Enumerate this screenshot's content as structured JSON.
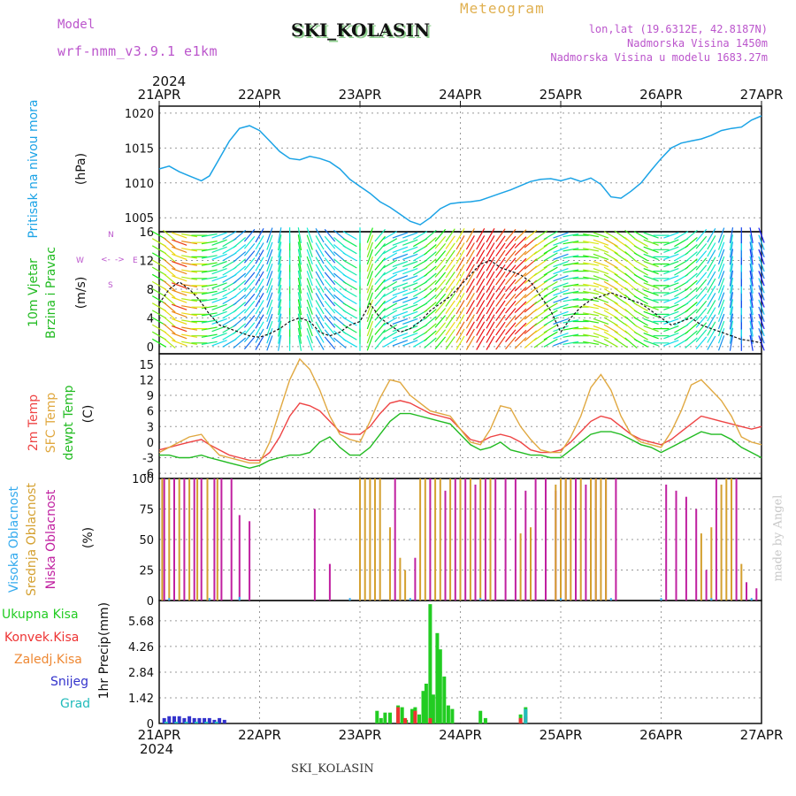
{
  "header": {
    "model_label": "Model",
    "model_name": "wrf-nmm_v3.9.1  e1km",
    "product": "Meteogram",
    "station": "SKI_KOLASIN",
    "location": "lon,lat (19.6312E, 42.8187N)",
    "elevation": "Nadmorska Visina 1450m",
    "model_elevation": "Nadmorska Visina u modelu 1683.27m",
    "year": "2024",
    "watermark": "made by Angel",
    "footer_station": "SKI_KOLASIN"
  },
  "colors": {
    "pressure": "#1ba3e6",
    "t2m": "#ee4444",
    "sfc": "#e0a840",
    "dewpt": "#22bb22",
    "high_cloud": "#33aaee",
    "mid_cloud": "#d4a030",
    "low_cloud": "#c020a0",
    "total_precip": "#22cc22",
    "conv_precip": "#ee3333",
    "frz_precip": "#ee8833",
    "snow": "#3333cc",
    "hail": "#22bbbb",
    "wind_speed": "#111111",
    "gust": "#ee3333"
  },
  "chart_data": [
    {
      "id": "pressure",
      "type": "line",
      "ylabel": [
        "Pritisak na nivou mora",
        "(hPa)"
      ],
      "ylim": [
        1003,
        1021
      ],
      "yticks": [
        1005,
        1010,
        1015,
        1020
      ],
      "x_days": [
        0,
        0.1,
        0.2,
        0.3,
        0.42,
        0.5,
        0.6,
        0.7,
        0.8,
        0.9,
        1.0,
        1.1,
        1.2,
        1.3,
        1.4,
        1.5,
        1.6,
        1.7,
        1.8,
        1.9,
        2.0,
        2.1,
        2.2,
        2.3,
        2.4,
        2.5,
        2.6,
        2.7,
        2.8,
        2.9,
        3.0,
        3.1,
        3.2,
        3.3,
        3.4,
        3.5,
        3.6,
        3.7,
        3.8,
        3.9,
        4.0,
        4.1,
        4.2,
        4.3,
        4.4,
        4.5,
        4.6,
        4.7,
        4.8,
        4.9,
        5.0,
        5.1,
        5.2,
        5.3,
        5.4,
        5.5,
        5.6,
        5.7,
        5.8,
        5.9,
        6.0
      ],
      "values": [
        1012.0,
        1012.4,
        1011.6,
        1011.0,
        1010.3,
        1011.0,
        1013.5,
        1016.0,
        1017.8,
        1018.2,
        1017.5,
        1016.0,
        1014.5,
        1013.5,
        1013.3,
        1013.8,
        1013.5,
        1013.0,
        1012.0,
        1010.5,
        1009.5,
        1008.5,
        1007.3,
        1006.5,
        1005.5,
        1004.5,
        1004.0,
        1005.0,
        1006.3,
        1007.0,
        1007.2,
        1007.3,
        1007.5,
        1008.0,
        1008.5,
        1009.0,
        1009.6,
        1010.2,
        1010.5,
        1010.6,
        1010.3,
        1010.7,
        1010.2,
        1010.7,
        1009.8,
        1008.0,
        1007.8,
        1008.8,
        1010.0,
        1011.8,
        1013.5,
        1015.0,
        1015.7,
        1016.0,
        1016.3,
        1016.8,
        1017.5,
        1017.8,
        1018.0,
        1019.0,
        1019.6
      ]
    },
    {
      "id": "wind",
      "type": "line",
      "ylabel": [
        "10m Vjetar",
        "Brzina i Pravac",
        "(m/s)"
      ],
      "direction_legend": [
        "N",
        "E",
        "S",
        "W",
        "<-",
        "->"
      ],
      "ylim": [
        -1,
        16
      ],
      "yticks": [
        0,
        4,
        8,
        12,
        16
      ],
      "x_days": [
        0,
        0.1,
        0.2,
        0.3,
        0.4,
        0.5,
        0.6,
        0.7,
        0.8,
        0.9,
        1.0,
        1.1,
        1.2,
        1.3,
        1.4,
        1.5,
        1.6,
        1.7,
        1.8,
        1.9,
        2.0,
        2.1,
        2.2,
        2.3,
        2.4,
        2.5,
        2.6,
        2.7,
        2.8,
        2.9,
        3.0,
        3.1,
        3.2,
        3.3,
        3.4,
        3.5,
        3.6,
        3.7,
        3.8,
        3.9,
        4.0,
        4.1,
        4.2,
        4.3,
        4.4,
        4.5,
        4.6,
        4.7,
        4.8,
        4.9,
        5.0,
        5.1,
        5.2,
        5.3,
        5.4,
        5.5,
        5.6,
        5.7,
        5.8,
        5.9,
        6.0
      ],
      "values": [
        6.0,
        8.0,
        9.0,
        8.0,
        6.5,
        4.5,
        3.0,
        2.5,
        2.0,
        1.5,
        1.3,
        1.8,
        2.5,
        3.5,
        4.0,
        3.5,
        2.0,
        1.5,
        2.0,
        3.0,
        3.5,
        6.0,
        4.0,
        3.0,
        2.0,
        2.5,
        3.5,
        5.0,
        6.0,
        7.0,
        8.5,
        10.0,
        11.5,
        12.0,
        11.0,
        10.5,
        10.0,
        9.0,
        7.0,
        5.0,
        2.0,
        4.0,
        5.5,
        6.5,
        7.0,
        7.5,
        7.0,
        6.5,
        6.0,
        5.0,
        4.0,
        3.0,
        3.5,
        4.0,
        3.0,
        2.5,
        2.0,
        1.5,
        1.0,
        0.8,
        0.5
      ],
      "wind_dir_deg": [
        300,
        310,
        290,
        280,
        270,
        260,
        250,
        240,
        230,
        220,
        210,
        200,
        190,
        180,
        170,
        160,
        150,
        140,
        130,
        120,
        180,
        200,
        220,
        240,
        250,
        250,
        240,
        230,
        220,
        215,
        210,
        210,
        210,
        210,
        215,
        220,
        225,
        230,
        235,
        240,
        250,
        260,
        270,
        280,
        290,
        300,
        305,
        310,
        300,
        290,
        270,
        250,
        240,
        230,
        220,
        210,
        200,
        190,
        180,
        170,
        160
      ]
    },
    {
      "id": "temperature",
      "type": "line",
      "ylabel": [
        "2m Temp",
        "SFC Temp",
        "dewpt Temp",
        "(C)"
      ],
      "ylim": [
        -7,
        17
      ],
      "yticks": [
        -6,
        -3,
        0,
        3,
        6,
        9,
        12,
        15
      ],
      "x_days": [
        0,
        0.1,
        0.2,
        0.3,
        0.42,
        0.5,
        0.6,
        0.7,
        0.8,
        0.9,
        1.0,
        1.1,
        1.2,
        1.3,
        1.4,
        1.5,
        1.6,
        1.7,
        1.8,
        1.9,
        2.0,
        2.1,
        2.2,
        2.3,
        2.4,
        2.5,
        2.6,
        2.7,
        2.8,
        2.9,
        3.0,
        3.1,
        3.2,
        3.3,
        3.4,
        3.5,
        3.6,
        3.7,
        3.8,
        3.9,
        4.0,
        4.1,
        4.2,
        4.3,
        4.4,
        4.5,
        4.6,
        4.7,
        4.8,
        4.9,
        5.0,
        5.1,
        5.2,
        5.3,
        5.4,
        5.5,
        5.6,
        5.7,
        5.8,
        5.9,
        6.0
      ],
      "series": [
        {
          "name": "2m Temp",
          "values": [
            -1.5,
            -1.0,
            -0.5,
            0.0,
            0.5,
            -0.5,
            -1.5,
            -2.5,
            -3.0,
            -3.5,
            -3.5,
            -2.0,
            1.0,
            5.0,
            7.5,
            7.0,
            6.0,
            4.0,
            2.0,
            1.5,
            1.5,
            3.0,
            5.5,
            7.5,
            8.0,
            7.5,
            6.5,
            5.5,
            5.0,
            4.5,
            2.5,
            0.5,
            0.0,
            1.0,
            1.5,
            1.0,
            0.0,
            -1.5,
            -2.0,
            -2.0,
            -1.5,
            0.0,
            2.0,
            4.0,
            5.0,
            4.5,
            3.0,
            1.5,
            0.5,
            0.0,
            -0.5,
            0.5,
            2.0,
            3.5,
            5.0,
            4.5,
            4.0,
            3.5,
            3.0,
            2.5,
            3.0
          ]
        },
        {
          "name": "SFC Temp",
          "values": [
            -2.0,
            -1.0,
            0.0,
            1.0,
            1.5,
            -0.5,
            -2.5,
            -3.0,
            -3.5,
            -4.0,
            -4.0,
            0.0,
            6.0,
            12.0,
            16.0,
            14.0,
            10.0,
            5.0,
            1.5,
            0.5,
            0.0,
            4.0,
            8.5,
            12.0,
            11.5,
            9.0,
            7.5,
            6.0,
            5.5,
            5.0,
            2.5,
            0.0,
            -0.5,
            2.5,
            7.0,
            6.5,
            3.0,
            0.5,
            -1.5,
            -2.0,
            -2.0,
            1.0,
            5.0,
            10.5,
            13.0,
            10.0,
            5.0,
            1.5,
            0.0,
            -0.5,
            -1.0,
            2.0,
            6.0,
            11.0,
            12.0,
            10.0,
            8.0,
            5.0,
            1.0,
            0.0,
            -0.5
          ]
        },
        {
          "name": "dewpt Temp",
          "values": [
            -2.5,
            -2.5,
            -3.0,
            -3.0,
            -2.5,
            -3.0,
            -3.5,
            -4.0,
            -4.5,
            -5.0,
            -4.5,
            -3.5,
            -3.0,
            -2.5,
            -2.5,
            -2.0,
            0.0,
            1.0,
            -1.0,
            -2.5,
            -2.5,
            -1.0,
            1.5,
            4.0,
            5.5,
            5.5,
            5.0,
            4.5,
            4.0,
            3.5,
            1.5,
            -0.5,
            -1.5,
            -1.0,
            0.0,
            -1.5,
            -2.0,
            -2.5,
            -2.5,
            -3.0,
            -3.0,
            -1.5,
            0.0,
            1.5,
            2.0,
            2.0,
            1.5,
            0.5,
            -0.5,
            -1.0,
            -2.0,
            -1.0,
            0.0,
            1.0,
            2.0,
            1.5,
            1.5,
            0.5,
            -1.0,
            -2.0,
            -3.0
          ]
        }
      ]
    },
    {
      "id": "cloud",
      "type": "bar",
      "ylabel": [
        "Visoka Oblacnost",
        "Srednja Oblacnost",
        "Niska Oblacnost",
        "(%)"
      ],
      "ylim": [
        0,
        100
      ],
      "yticks": [
        0,
        25,
        50,
        75,
        100
      ],
      "series": [
        {
          "name": "Niska Oblacnost",
          "x_days": [
            0.05,
            0.15,
            0.25,
            0.35,
            0.42,
            0.55,
            0.62,
            0.72,
            0.8,
            0.9,
            1.55,
            1.7,
            2.35,
            2.55,
            2.7,
            2.85,
            2.95,
            3.05,
            3.15,
            3.25,
            3.35,
            3.45,
            3.55,
            3.65,
            3.75,
            3.85,
            3.95,
            4.05,
            4.15,
            4.25,
            4.35,
            4.45,
            4.55,
            5.05,
            5.15,
            5.25,
            5.35,
            5.45,
            5.55,
            5.75,
            5.85,
            5.95
          ],
          "values": [
            100,
            100,
            100,
            100,
            100,
            100,
            100,
            100,
            70,
            65,
            75,
            30,
            100,
            35,
            100,
            90,
            100,
            100,
            95,
            100,
            100,
            100,
            100,
            90,
            100,
            100,
            90,
            100,
            100,
            95,
            100,
            100,
            100,
            95,
            90,
            85,
            75,
            25,
            100,
            100,
            15,
            10
          ]
        },
        {
          "name": "Srednja Oblacnost",
          "x_days": [
            0.03,
            0.1,
            0.2,
            0.3,
            0.38,
            0.48,
            0.58,
            2.0,
            2.05,
            2.1,
            2.15,
            2.2,
            2.3,
            2.4,
            2.45,
            2.6,
            2.65,
            2.75,
            2.8,
            2.9,
            3.0,
            3.1,
            3.2,
            3.3,
            3.6,
            3.7,
            3.95,
            4.0,
            4.05,
            4.1,
            4.2,
            4.3,
            4.35,
            4.4,
            4.45,
            5.4,
            5.5,
            5.6,
            5.65,
            5.7,
            5.8
          ],
          "values": [
            100,
            100,
            100,
            100,
            100,
            100,
            100,
            100,
            100,
            100,
            100,
            100,
            60,
            35,
            25,
            100,
            100,
            100,
            100,
            100,
            100,
            100,
            100,
            100,
            55,
            60,
            95,
            100,
            100,
            100,
            100,
            100,
            100,
            100,
            100,
            55,
            60,
            95,
            100,
            100,
            30
          ]
        },
        {
          "name": "Visoka Oblacnost",
          "x_days": [
            0.1,
            0.5,
            0.8,
            1.9,
            2.5,
            3.2,
            4.0,
            4.5,
            5.0,
            5.5,
            5.9
          ],
          "values": [
            2,
            2,
            3,
            2,
            2,
            2,
            2,
            2,
            2,
            2,
            2
          ]
        }
      ]
    },
    {
      "id": "precip",
      "type": "bar",
      "ylabel": [
        "1hr Precip",
        "(mm)"
      ],
      "ylim": [
        0,
        6.8
      ],
      "yticks": [
        0,
        1.42,
        2.84,
        4.26,
        5.68
      ],
      "legend": [
        "Ukupna Kisa",
        "Konvek.Kisa",
        "Zaledj.Kisa",
        "Snijeg",
        "Grad"
      ],
      "series": [
        {
          "name": "Ukupna Kisa",
          "x_days": [
            2.17,
            2.21,
            2.25,
            2.3,
            2.38,
            2.42,
            2.46,
            2.52,
            2.55,
            2.59,
            2.63,
            2.66,
            2.7,
            2.73,
            2.77,
            2.8,
            2.84,
            2.88,
            2.92,
            3.2,
            3.25,
            3.6,
            3.65
          ],
          "values": [
            0.7,
            0.3,
            0.6,
            0.6,
            1.0,
            0.9,
            0.2,
            0.8,
            0.9,
            0.5,
            1.8,
            2.2,
            6.6,
            1.6,
            5.0,
            4.1,
            2.6,
            1.0,
            0.8,
            0.7,
            0.3,
            0.5,
            0.9
          ]
        },
        {
          "name": "Konvek.Kisa",
          "x_days": [
            2.38,
            2.45,
            2.55,
            2.7,
            3.6,
            3.65
          ],
          "values": [
            0.9,
            0.3,
            0.7,
            0.3,
            0.3,
            0.4
          ]
        },
        {
          "name": "Snijeg",
          "x_days": [
            0.05,
            0.1,
            0.15,
            0.2,
            0.25,
            0.3,
            0.35,
            0.4,
            0.45,
            0.5,
            0.55,
            0.6,
            0.65
          ],
          "values": [
            0.3,
            0.4,
            0.4,
            0.4,
            0.3,
            0.4,
            0.3,
            0.3,
            0.3,
            0.3,
            0.2,
            0.3,
            0.2
          ]
        },
        {
          "name": "Grad",
          "x_days": [
            0.07,
            0.17,
            0.27,
            0.37,
            0.47,
            0.57,
            3.65
          ],
          "values": [
            0.1,
            0.1,
            0.1,
            0.1,
            0.1,
            0.1,
            0.8
          ]
        }
      ]
    }
  ],
  "x_axis": {
    "labels": [
      "21APR",
      "22APR",
      "23APR",
      "24APR",
      "25APR",
      "26APR",
      "27APR"
    ],
    "range_days": [
      0,
      6
    ]
  }
}
